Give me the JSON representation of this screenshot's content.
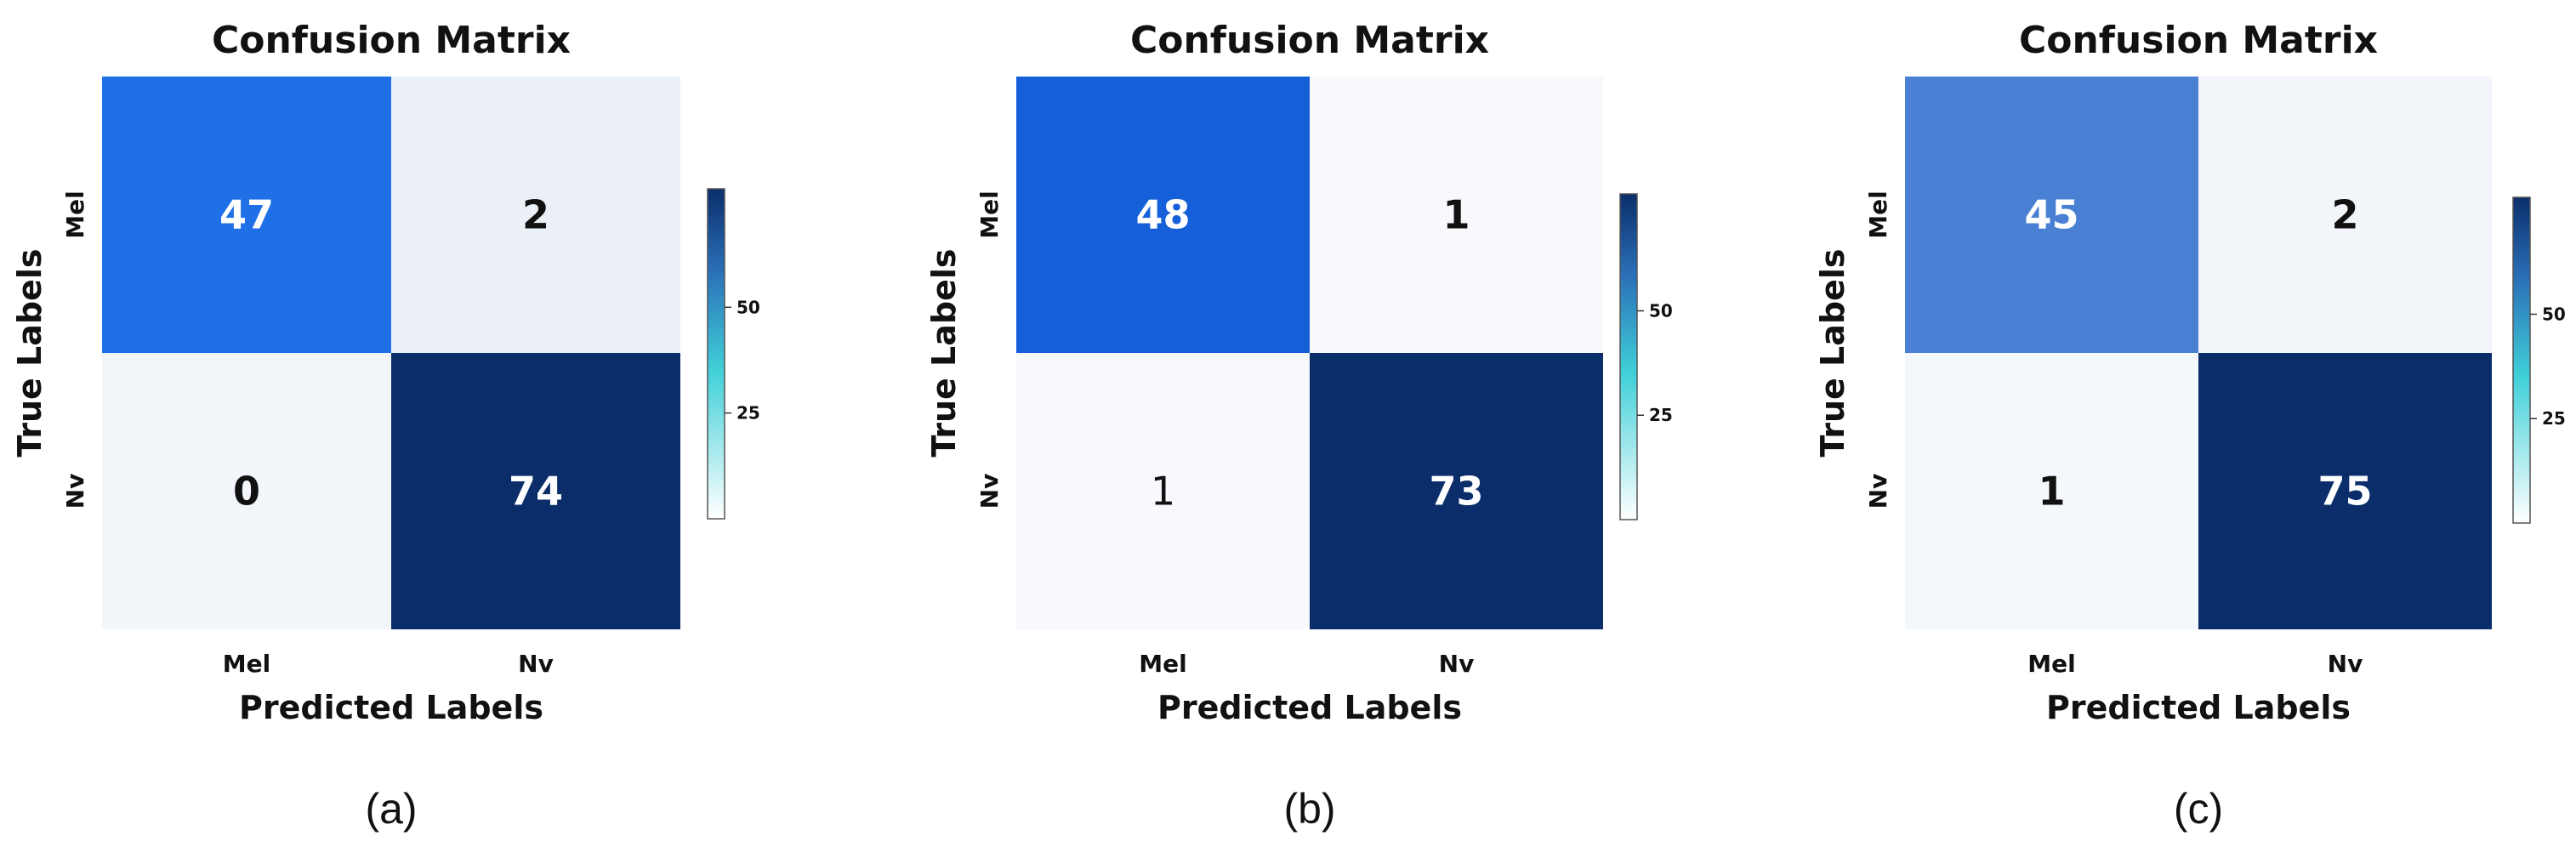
{
  "chart_data": [
    {
      "type": "heatmap",
      "title": "Confusion Matrix",
      "xlabel": "Predicted Labels",
      "ylabel": "True Labels",
      "x_categories": [
        "Mel",
        "Nv"
      ],
      "y_categories": [
        "Mel",
        "Nv"
      ],
      "values": [
        [
          47,
          2
        ],
        [
          0,
          74
        ]
      ],
      "colorbar_ticks": [
        25,
        50
      ],
      "caption": "(a)"
    },
    {
      "type": "heatmap",
      "title": "Confusion Matrix",
      "xlabel": "Predicted Labels",
      "ylabel": "True Labels",
      "x_categories": [
        "Mel",
        "Nv"
      ],
      "y_categories": [
        "Mel",
        "Nv"
      ],
      "values": [
        [
          48,
          1
        ],
        [
          1,
          73
        ]
      ],
      "colorbar_ticks": [
        25,
        50
      ],
      "caption": "(b)"
    },
    {
      "type": "heatmap",
      "title": "Confusion Matrix",
      "xlabel": "Predicted Labels",
      "ylabel": "True Labels",
      "x_categories": [
        "Mel",
        "Nv"
      ],
      "y_categories": [
        "Mel",
        "Nv"
      ],
      "values": [
        [
          45,
          2
        ],
        [
          1,
          75
        ]
      ],
      "colorbar_ticks": [
        25,
        50
      ],
      "caption": "(c)"
    }
  ],
  "colors": {
    "scale_low": "#ffffff",
    "scale_mid": "#40d0d8",
    "scale_high": "#0b2e6b",
    "cell_colors": [
      [
        [
          "#1f6fe6",
          "#ebf0f7"
        ],
        [
          "#f2f5fa",
          "#0b2e6b"
        ]
      ],
      [
        [
          "#1560d8",
          "#f7f9fc"
        ],
        [
          "#f7f9fc",
          "#0b2e6b"
        ]
      ],
      [
        [
          "#4a80d4",
          "#f2f5f9"
        ],
        [
          "#f4f7fb",
          "#0b2e6b"
        ]
      ]
    ],
    "light_text": "#ffffff",
    "dark_text": "#111111"
  }
}
